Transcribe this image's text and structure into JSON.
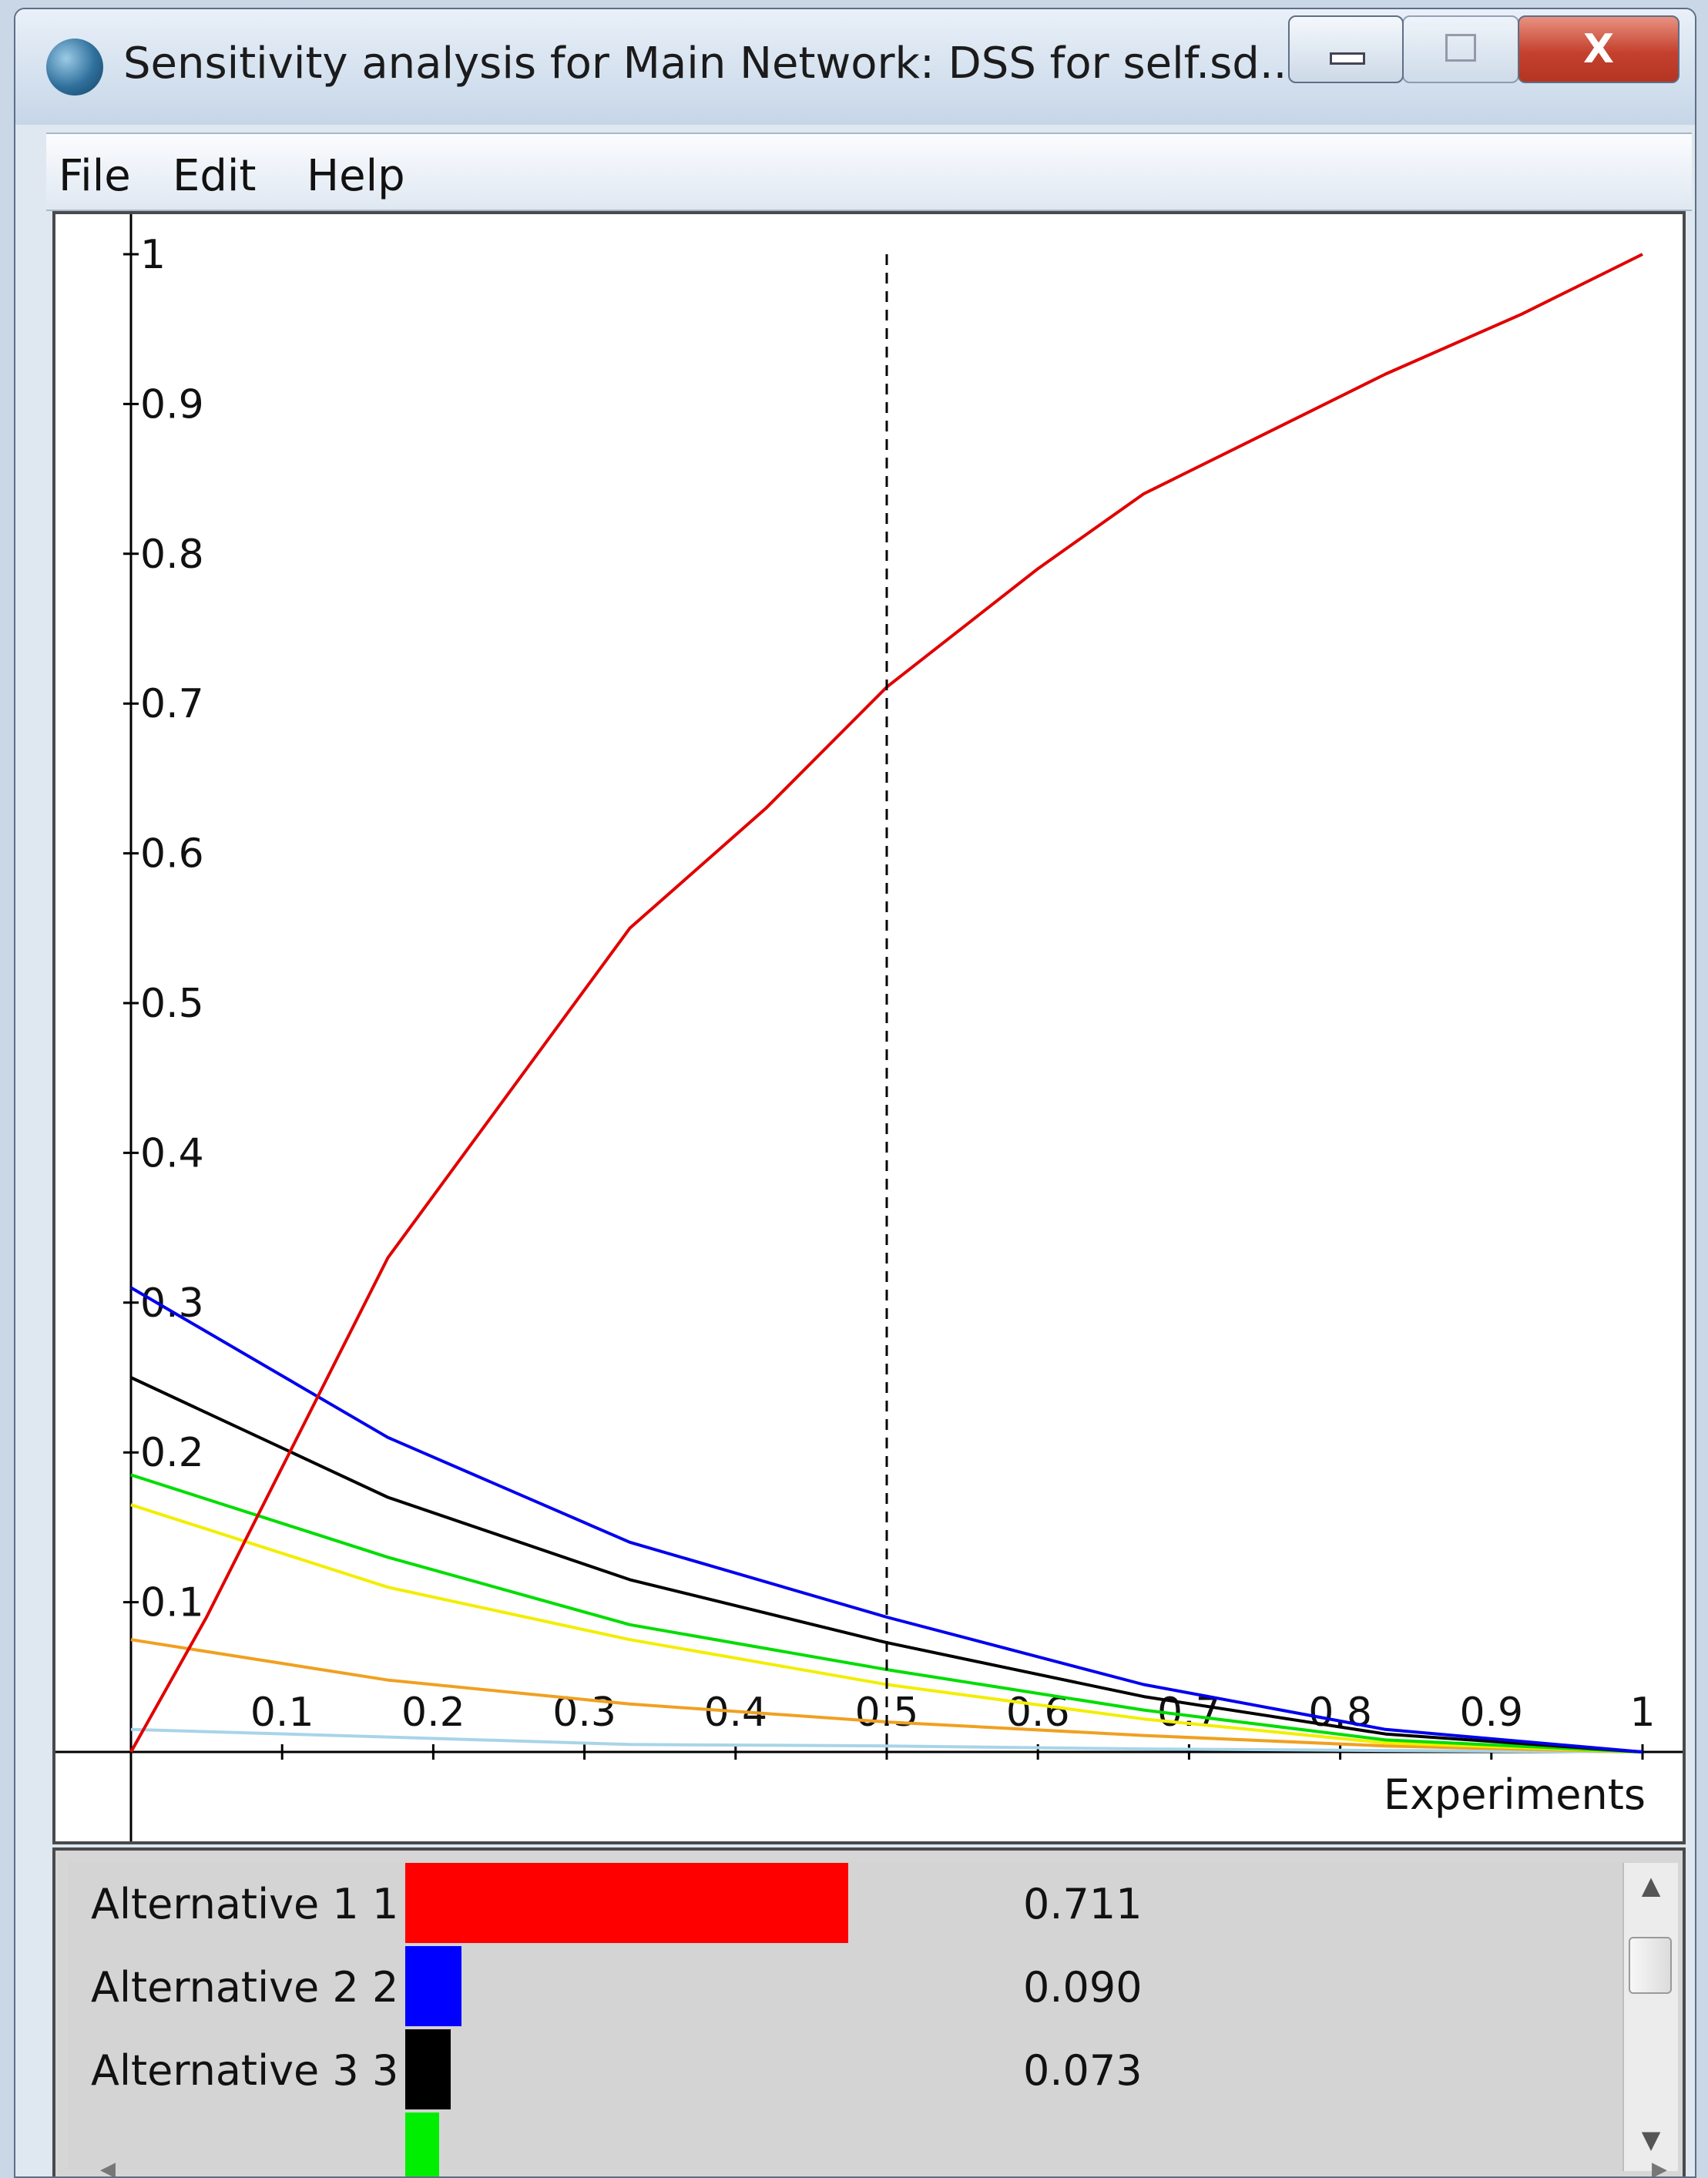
{
  "window": {
    "title": "Sensitivity analysis for Main Network: DSS for self.sd...",
    "close_glyph": "X"
  },
  "menu": {
    "file": "File",
    "edit": "Edit",
    "help": "Help"
  },
  "chart_data": {
    "type": "line",
    "xlabel": "Experiments",
    "ylabel": "",
    "xlim": [
      0,
      1
    ],
    "ylim": [
      0,
      1
    ],
    "x_ticks": [
      "0.1",
      "0.2",
      "0.3",
      "0.4",
      "0.5",
      "0.6",
      "0.7",
      "0.8",
      "0.9",
      "1"
    ],
    "y_ticks": [
      "0.1",
      "0.2",
      "0.3",
      "0.4",
      "0.5",
      "0.6",
      "0.7",
      "0.8",
      "0.9",
      "1"
    ],
    "marker_x": 0.5,
    "series": [
      {
        "color": "#e00000",
        "x": [
          0,
          0.05,
          0.1,
          0.17,
          0.25,
          0.33,
          0.42,
          0.5,
          0.6,
          0.67,
          0.75,
          0.83,
          0.92,
          1.0
        ],
        "y": [
          0,
          0.09,
          0.19,
          0.33,
          0.44,
          0.55,
          0.63,
          0.711,
          0.79,
          0.84,
          0.88,
          0.92,
          0.96,
          1.0
        ]
      },
      {
        "color": "#0000ee",
        "x": [
          0,
          0.17,
          0.33,
          0.5,
          0.67,
          0.83,
          1.0
        ],
        "y": [
          0.31,
          0.21,
          0.14,
          0.09,
          0.045,
          0.015,
          0.0
        ]
      },
      {
        "color": "#000000",
        "x": [
          0,
          0.17,
          0.33,
          0.5,
          0.67,
          0.83,
          1.0
        ],
        "y": [
          0.25,
          0.17,
          0.115,
          0.073,
          0.037,
          0.012,
          0.0
        ]
      },
      {
        "color": "#00dd00",
        "x": [
          0,
          0.17,
          0.33,
          0.5,
          0.67,
          0.83,
          1.0
        ],
        "y": [
          0.185,
          0.13,
          0.085,
          0.055,
          0.028,
          0.008,
          0.0
        ]
      },
      {
        "color": "#f2ee00",
        "x": [
          0,
          0.17,
          0.33,
          0.5,
          0.67,
          0.83,
          1.0
        ],
        "y": [
          0.165,
          0.11,
          0.075,
          0.045,
          0.022,
          0.006,
          0.0
        ]
      },
      {
        "color": "#f0a020",
        "x": [
          0,
          0.17,
          0.33,
          0.5,
          0.67,
          0.83,
          1.0
        ],
        "y": [
          0.075,
          0.048,
          0.032,
          0.02,
          0.011,
          0.004,
          0.0
        ]
      },
      {
        "color": "#a8d4e8",
        "x": [
          0,
          0.17,
          0.33,
          0.5,
          0.67,
          0.83,
          1.0
        ],
        "y": [
          0.015,
          0.01,
          0.005,
          0.004,
          0.002,
          0.001,
          0.0
        ]
      }
    ]
  },
  "legend": [
    {
      "label": "Alternative 1  1",
      "value": "0.711",
      "fraction": 0.711,
      "color": "#ff0000"
    },
    {
      "label": "Alternative 2  2",
      "value": "0.090",
      "fraction": 0.09,
      "color": "#0000ff"
    },
    {
      "label": "Alternative 3  3",
      "value": "0.073",
      "fraction": 0.073,
      "color": "#000000"
    },
    {
      "label": "",
      "value": "",
      "fraction": 0.055,
      "color": "#00ee00"
    }
  ]
}
